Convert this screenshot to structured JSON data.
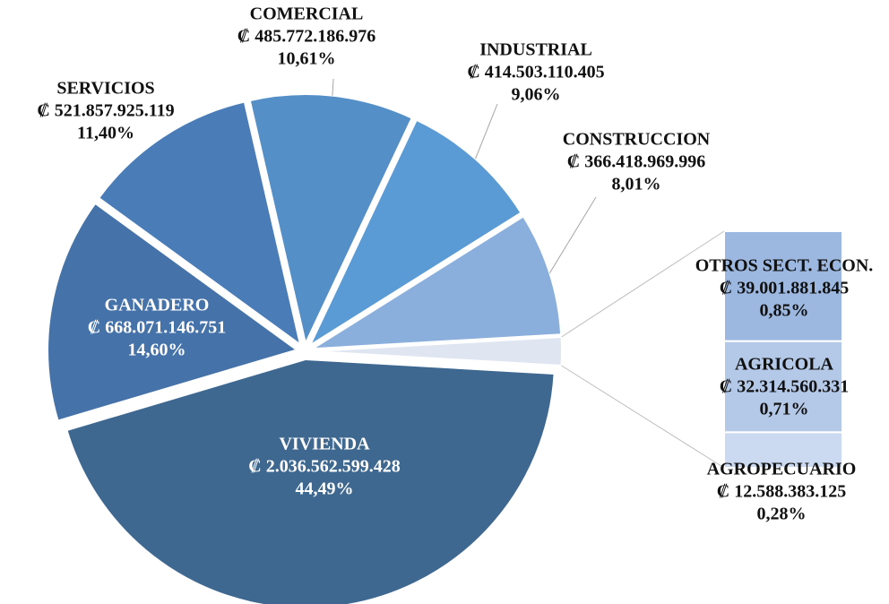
{
  "chart_data": {
    "type": "pie-of-bar",
    "categories": [
      "VIVIENDA",
      "GANADERO",
      "SERVICIOS",
      "COMERCIAL",
      "INDUSTRIAL",
      "CONSTRUCCION",
      "OTROS SECT. ECON.",
      "AGRICOLA",
      "AGROPECUARIO"
    ],
    "values": [
      2036562599428,
      668071146751,
      521857925119,
      485772186976,
      414503110405,
      366418969996,
      39001881845,
      32314560331,
      12588383125
    ],
    "value_labels": [
      "₡ 2.036.562.599.428",
      "₡ 668.071.146.751",
      "₡ 521.857.925.119",
      "₡ 485.772.186.976",
      "₡ 414.503.110.405",
      "₡ 366.418.969.996",
      "₡ 39.001.881.845",
      "₡ 32.314.560.331",
      "₡ 12.588.383.125"
    ],
    "percentages": [
      44.49,
      14.6,
      11.4,
      10.61,
      9.06,
      8.01,
      0.85,
      0.71,
      0.28
    ],
    "percentage_labels": [
      "44,49%",
      "14,60%",
      "11,40%",
      "10,61%",
      "9,06%",
      "8,01%",
      "0,85%",
      "0,71%",
      "0,28%"
    ],
    "colors": [
      "#3f6891",
      "#4572a8",
      "#4a7db7",
      "#548fc8",
      "#5b9bd5",
      "#8bafdc",
      "#9cb8e1",
      "#b4c8e8",
      "#cbdaf0"
    ],
    "pie_rest_color": "#dfe6f2"
  }
}
